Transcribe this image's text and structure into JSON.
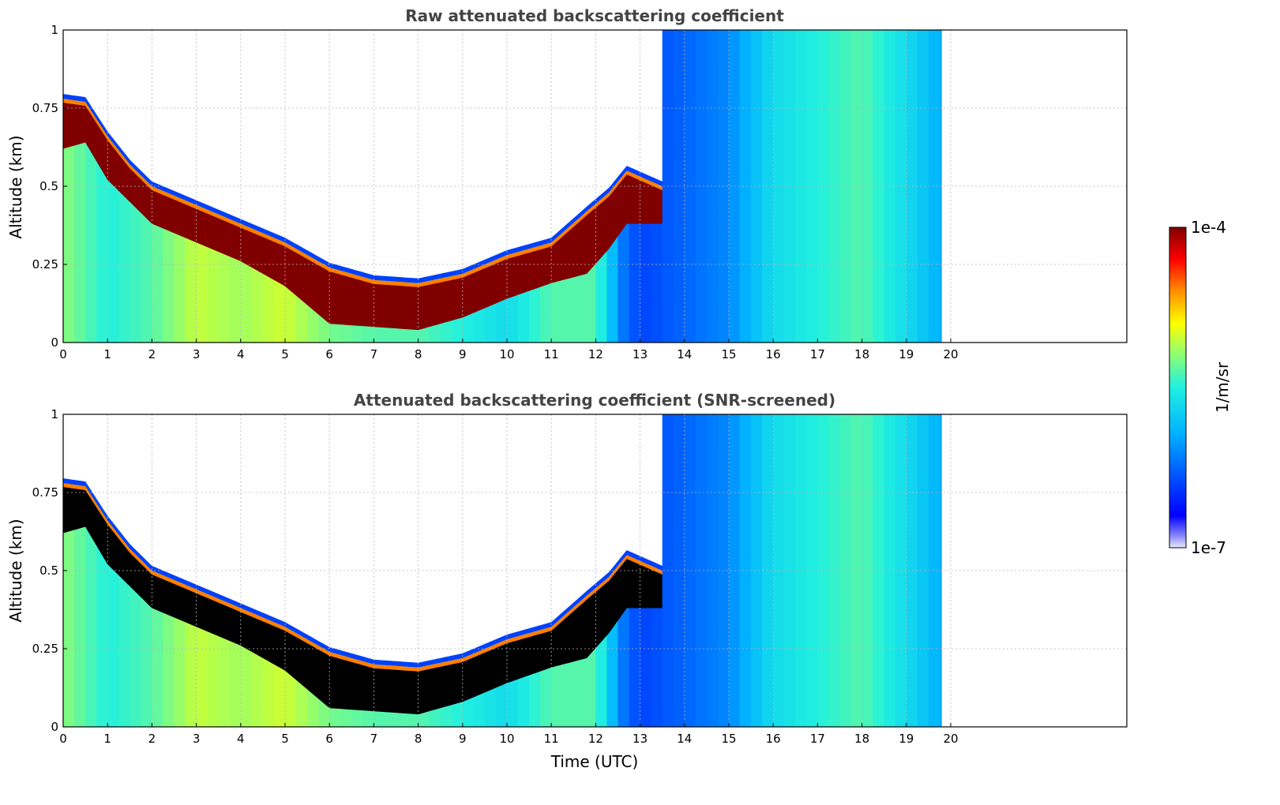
{
  "chart_data": [
    {
      "type": "heatmap",
      "title": "Raw attenuated backscattering coefficient",
      "xlabel": "",
      "ylabel": "Altitude (km)",
      "xlim": [
        0,
        24
      ],
      "ylim": [
        0,
        1
      ],
      "x_ticks": [
        "0",
        "1",
        "2",
        "3",
        "4",
        "5",
        "6",
        "7",
        "8",
        "9",
        "10",
        "11",
        "12",
        "13",
        "14",
        "15",
        "16",
        "17",
        "18",
        "19",
        "20"
      ],
      "y_ticks": [
        "0",
        "0.25",
        "0.5",
        "0.75",
        "1"
      ],
      "grid": true,
      "data_end_hour": 19.8,
      "layer_top_km": [
        [
          0,
          0.78
        ],
        [
          0.5,
          0.77
        ],
        [
          1,
          0.66
        ],
        [
          1.5,
          0.57
        ],
        [
          2,
          0.5
        ],
        [
          3,
          0.44
        ],
        [
          4,
          0.38
        ],
        [
          5,
          0.32
        ],
        [
          6,
          0.24
        ],
        [
          7,
          0.2
        ],
        [
          8,
          0.19
        ],
        [
          9,
          0.22
        ],
        [
          10,
          0.28
        ],
        [
          11,
          0.32
        ],
        [
          11.8,
          0.42
        ],
        [
          12.3,
          0.48
        ],
        [
          12.7,
          0.55
        ],
        [
          13.5,
          0.5
        ]
      ],
      "layer_bottom_km": [
        [
          0,
          0.62
        ],
        [
          0.5,
          0.64
        ],
        [
          1,
          0.52
        ],
        [
          1.5,
          0.45
        ],
        [
          2,
          0.38
        ],
        [
          3,
          0.32
        ],
        [
          4,
          0.26
        ],
        [
          5,
          0.18
        ],
        [
          6,
          0.06
        ],
        [
          7,
          0.05
        ],
        [
          8,
          0.04
        ],
        [
          9,
          0.08
        ],
        [
          10,
          0.14
        ],
        [
          11,
          0.19
        ],
        [
          11.8,
          0.22
        ],
        [
          12.3,
          0.3
        ],
        [
          12.7,
          0.38
        ],
        [
          13.5,
          0.38
        ]
      ],
      "dominant_level_by_hour": [
        [
          0,
          0.6
        ],
        [
          1,
          0.5
        ],
        [
          2,
          0.55
        ],
        [
          3,
          0.65
        ],
        [
          4,
          0.62
        ],
        [
          5,
          0.66
        ],
        [
          6,
          0.58
        ],
        [
          7,
          0.55
        ],
        [
          8,
          0.55
        ],
        [
          9,
          0.5
        ],
        [
          10,
          0.45
        ],
        [
          11,
          0.55
        ],
        [
          12,
          0.55
        ],
        [
          12.6,
          0.28
        ],
        [
          13,
          0.2
        ],
        [
          14,
          0.25
        ],
        [
          15,
          0.3
        ],
        [
          16,
          0.45
        ],
        [
          17,
          0.5
        ],
        [
          18,
          0.55
        ],
        [
          19,
          0.45
        ],
        [
          19.8,
          0.35
        ]
      ],
      "screened": false,
      "cloud_color": "#800000"
    },
    {
      "type": "heatmap",
      "title": "Attenuated backscattering coefficient (SNR-screened)",
      "xlabel": "Time (UTC)",
      "ylabel": "Altitude (km)",
      "xlim": [
        0,
        24
      ],
      "ylim": [
        0,
        1
      ],
      "x_ticks": [
        "0",
        "1",
        "2",
        "3",
        "4",
        "5",
        "6",
        "7",
        "8",
        "9",
        "10",
        "11",
        "12",
        "13",
        "14",
        "15",
        "16",
        "17",
        "18",
        "19",
        "20"
      ],
      "y_ticks": [
        "0",
        "0.25",
        "0.5",
        "0.75",
        "1"
      ],
      "grid": true,
      "data_end_hour": 19.8,
      "layer_top_km": [
        [
          0,
          0.78
        ],
        [
          0.5,
          0.77
        ],
        [
          1,
          0.66
        ],
        [
          1.5,
          0.57
        ],
        [
          2,
          0.5
        ],
        [
          3,
          0.44
        ],
        [
          4,
          0.38
        ],
        [
          5,
          0.32
        ],
        [
          6,
          0.24
        ],
        [
          7,
          0.2
        ],
        [
          8,
          0.19
        ],
        [
          9,
          0.22
        ],
        [
          10,
          0.28
        ],
        [
          11,
          0.32
        ],
        [
          11.8,
          0.42
        ],
        [
          12.3,
          0.48
        ],
        [
          12.7,
          0.55
        ],
        [
          13.5,
          0.5
        ]
      ],
      "layer_bottom_km": [
        [
          0,
          0.62
        ],
        [
          0.5,
          0.64
        ],
        [
          1,
          0.52
        ],
        [
          1.5,
          0.45
        ],
        [
          2,
          0.38
        ],
        [
          3,
          0.32
        ],
        [
          4,
          0.26
        ],
        [
          5,
          0.18
        ],
        [
          6,
          0.06
        ],
        [
          7,
          0.05
        ],
        [
          8,
          0.04
        ],
        [
          9,
          0.08
        ],
        [
          10,
          0.14
        ],
        [
          11,
          0.19
        ],
        [
          11.8,
          0.22
        ],
        [
          12.3,
          0.3
        ],
        [
          12.7,
          0.38
        ],
        [
          13.5,
          0.38
        ]
      ],
      "dominant_level_by_hour": [
        [
          0,
          0.6
        ],
        [
          1,
          0.5
        ],
        [
          2,
          0.55
        ],
        [
          3,
          0.65
        ],
        [
          4,
          0.62
        ],
        [
          5,
          0.66
        ],
        [
          6,
          0.58
        ],
        [
          7,
          0.55
        ],
        [
          8,
          0.55
        ],
        [
          9,
          0.5
        ],
        [
          10,
          0.45
        ],
        [
          11,
          0.55
        ],
        [
          12,
          0.55
        ],
        [
          12.6,
          0.28
        ],
        [
          13,
          0.2
        ],
        [
          14,
          0.25
        ],
        [
          15,
          0.3
        ],
        [
          16,
          0.45
        ],
        [
          17,
          0.5
        ],
        [
          18,
          0.55
        ],
        [
          19,
          0.45
        ],
        [
          19.8,
          0.35
        ]
      ],
      "screened": true,
      "cloud_color": "#000000"
    }
  ],
  "colorbar": {
    "label": "1/m/sr",
    "max_label": "1e-4",
    "min_label": "1e-7",
    "colormap": "jet",
    "scale": "log"
  }
}
